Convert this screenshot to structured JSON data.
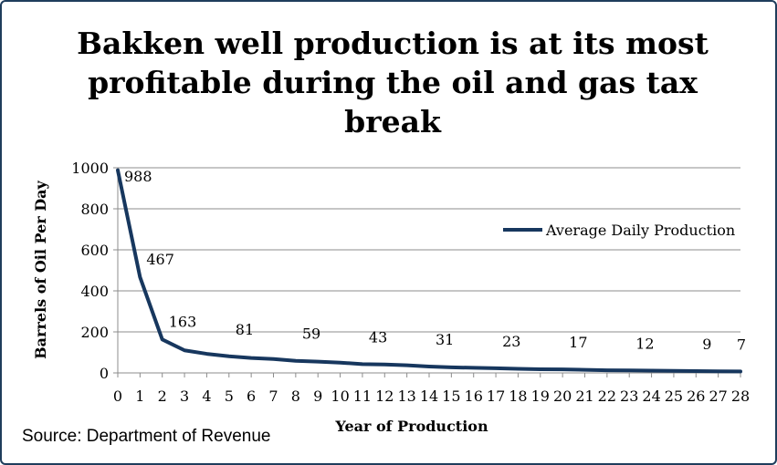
{
  "source": "Source: Department of Revenue",
  "chart_data": {
    "type": "line",
    "title": "Bakken well production is at its most profitable during the oil and gas tax break",
    "xlabel": "Year of Production",
    "ylabel": "Barrels of Oil Per Day",
    "ylim": [
      0,
      1000
    ],
    "y_ticks": [
      0,
      200,
      400,
      600,
      800,
      1000
    ],
    "grid": true,
    "legend_position": "right",
    "x": [
      0,
      1,
      2,
      3,
      4,
      5,
      6,
      7,
      8,
      9,
      10,
      11,
      12,
      13,
      14,
      15,
      16,
      17,
      18,
      19,
      20,
      21,
      22,
      23,
      24,
      25,
      26,
      27,
      28
    ],
    "series": [
      {
        "name": "Average Daily Production",
        "color": "#17375e",
        "values": [
          988,
          467,
          163,
          110,
          93,
          81,
          73,
          68,
          59,
          55,
          50,
          43,
          41,
          37,
          31,
          27,
          25,
          23,
          20,
          18,
          17,
          15,
          13,
          12,
          11,
          10,
          9,
          8,
          7
        ]
      }
    ],
    "data_labels": [
      {
        "x": 0,
        "text": "988"
      },
      {
        "x": 1,
        "text": "467"
      },
      {
        "x": 2,
        "text": "163"
      },
      {
        "x": 5,
        "text": "81"
      },
      {
        "x": 8,
        "text": "59"
      },
      {
        "x": 11,
        "text": "43"
      },
      {
        "x": 14,
        "text": "31"
      },
      {
        "x": 17,
        "text": "23"
      },
      {
        "x": 20,
        "text": "17"
      },
      {
        "x": 23,
        "text": "12"
      },
      {
        "x": 26,
        "text": "9"
      },
      {
        "x": 28,
        "text": "7"
      }
    ]
  }
}
